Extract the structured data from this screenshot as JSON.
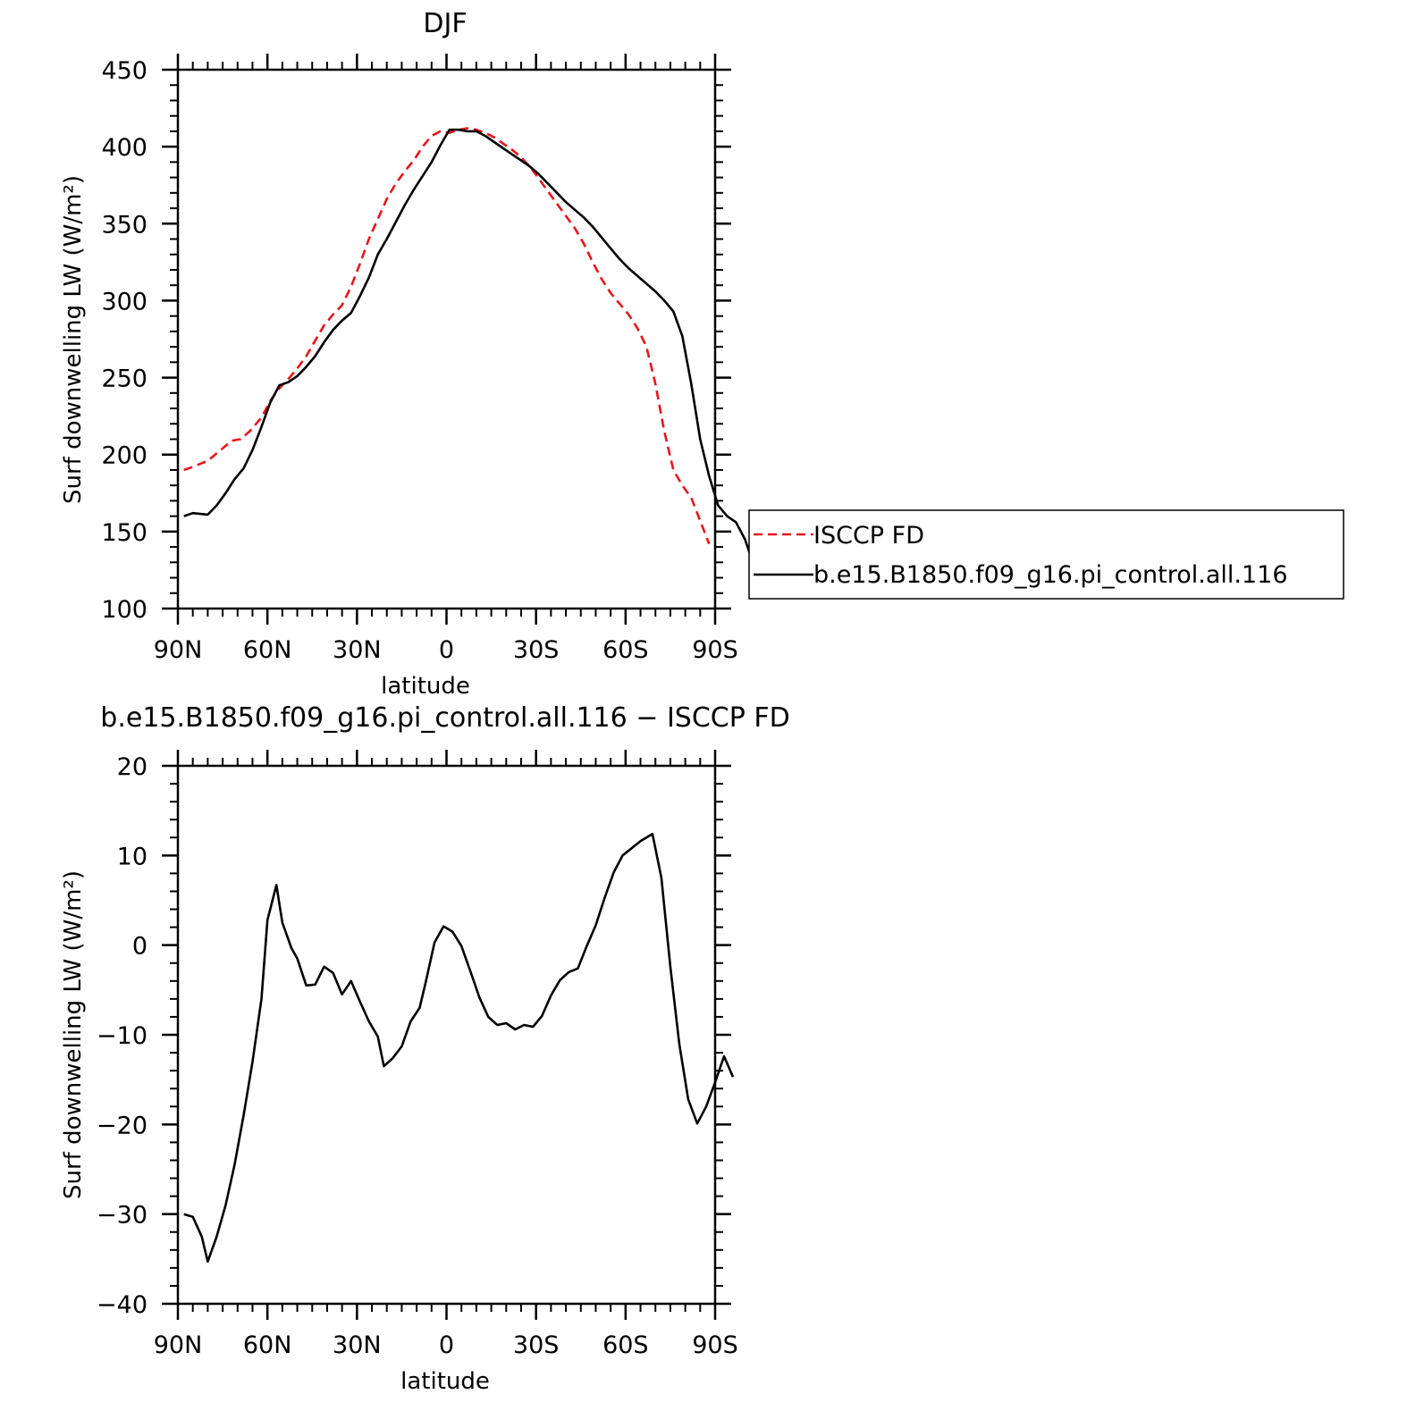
{
  "chart_data": [
    {
      "type": "line",
      "title": "DJF",
      "xlabel": "latitude",
      "ylabel": "Surf downwelling LW (W/m²)",
      "xlim": [
        90,
        -90
      ],
      "ylim": [
        100,
        450
      ],
      "x_ticks": [
        {
          "value": 90,
          "label": "90N"
        },
        {
          "value": 60,
          "label": "60N"
        },
        {
          "value": 30,
          "label": "30N"
        },
        {
          "value": 0,
          "label": "0"
        },
        {
          "value": -30,
          "label": "30S"
        },
        {
          "value": -60,
          "label": "60S"
        },
        {
          "value": -90,
          "label": "90S"
        }
      ],
      "y_ticks": [
        {
          "value": 100,
          "label": "100"
        },
        {
          "value": 150,
          "label": "150"
        },
        {
          "value": 200,
          "label": "200"
        },
        {
          "value": 250,
          "label": "250"
        },
        {
          "value": 300,
          "label": "300"
        },
        {
          "value": 350,
          "label": "350"
        },
        {
          "value": 400,
          "label": "400"
        },
        {
          "value": 450,
          "label": "450"
        }
      ],
      "legend": "right",
      "series": [
        {
          "name": "ISCCP FD",
          "color": "#e8151b",
          "dash": true,
          "points": [
            [
              88,
              190
            ],
            [
              85,
              192
            ],
            [
              80,
              196
            ],
            [
              75,
              204
            ],
            [
              72,
              209
            ],
            [
              69,
              210
            ],
            [
              66,
              215
            ],
            [
              62,
              224
            ],
            [
              59,
              235
            ],
            [
              56,
              243
            ],
            [
              53,
              249
            ],
            [
              50,
              256
            ],
            [
              47,
              264
            ],
            [
              44,
              274
            ],
            [
              41,
              284
            ],
            [
              38,
              291
            ],
            [
              35,
              297
            ],
            [
              32,
              309
            ],
            [
              29,
              324
            ],
            [
              26,
              340
            ],
            [
              23,
              353
            ],
            [
              20,
              366
            ],
            [
              17,
              376
            ],
            [
              14,
              384
            ],
            [
              11,
              391
            ],
            [
              8,
              400
            ],
            [
              5,
              407
            ],
            [
              2,
              410
            ],
            [
              -1,
              409
            ],
            [
              -4,
              411
            ],
            [
              -7,
              412
            ],
            [
              -10,
              411
            ],
            [
              -13,
              409
            ],
            [
              -16,
              406
            ],
            [
              -19,
              402
            ],
            [
              -22,
              398
            ],
            [
              -25,
              393
            ],
            [
              -28,
              387
            ],
            [
              -31,
              379
            ],
            [
              -34,
              371
            ],
            [
              -37,
              363
            ],
            [
              -40,
              355
            ],
            [
              -43,
              347
            ],
            [
              -46,
              337
            ],
            [
              -49,
              325
            ],
            [
              -52,
              314
            ],
            [
              -55,
              305
            ],
            [
              -58,
              298
            ],
            [
              -61,
              291
            ],
            [
              -64,
              282
            ],
            [
              -67,
              270
            ],
            [
              -70,
              246
            ],
            [
              -73,
              215
            ],
            [
              -76,
              190
            ],
            [
              -79,
              180
            ],
            [
              -82,
              172
            ],
            [
              -85,
              157
            ],
            [
              -88,
              142
            ]
          ]
        },
        {
          "name": "b.e15.B1850.f09_g16.pi_control.all.116",
          "color": "#000000",
          "dash": false,
          "points": [
            [
              88,
              160
            ],
            [
              85,
              162
            ],
            [
              80,
              161
            ],
            [
              77,
              167
            ],
            [
              74,
              175
            ],
            [
              71,
              184
            ],
            [
              68,
              191
            ],
            [
              65,
              203
            ],
            [
              62,
              218
            ],
            [
              59,
              234
            ],
            [
              56,
              245
            ],
            [
              53,
              247
            ],
            [
              50,
              251
            ],
            [
              47,
              257
            ],
            [
              44,
              264
            ],
            [
              41,
              273
            ],
            [
              38,
              281
            ],
            [
              35,
              287
            ],
            [
              32,
              292
            ],
            [
              29,
              303
            ],
            [
              26,
              315
            ],
            [
              23,
              330
            ],
            [
              20,
              340
            ],
            [
              17,
              351
            ],
            [
              14,
              362
            ],
            [
              11,
              372
            ],
            [
              8,
              381
            ],
            [
              5,
              390
            ],
            [
              2,
              401
            ],
            [
              -1,
              411
            ],
            [
              -4,
              411
            ],
            [
              -7,
              410
            ],
            [
              -10,
              410
            ],
            [
              -13,
              407
            ],
            [
              -16,
              403
            ],
            [
              -19,
              399
            ],
            [
              -22,
              395
            ],
            [
              -25,
              391
            ],
            [
              -28,
              387
            ],
            [
              -31,
              382
            ],
            [
              -34,
              376
            ],
            [
              -37,
              370
            ],
            [
              -40,
              364
            ],
            [
              -43,
              359
            ],
            [
              -46,
              354
            ],
            [
              -49,
              348
            ],
            [
              -52,
              341
            ],
            [
              -55,
              334
            ],
            [
              -58,
              327
            ],
            [
              -61,
              321
            ],
            [
              -64,
              316
            ],
            [
              -67,
              311
            ],
            [
              -70,
              306
            ],
            [
              -73,
              300
            ],
            [
              -76,
              293
            ],
            [
              -79,
              277
            ],
            [
              -82,
              246
            ],
            [
              -85,
              210
            ],
            [
              -88,
              186
            ],
            [
              -91,
              167
            ],
            [
              -94,
              160
            ],
            [
              -97,
              156
            ],
            [
              -100,
              145
            ],
            [
              -103,
              128
            ]
          ]
        }
      ]
    },
    {
      "type": "line",
      "title": "b.e15.B1850.f09_g16.pi_control.all.116 − ISCCP FD",
      "xlabel": "latitude",
      "ylabel": "Surf downwelling LW (W/m²)",
      "xlim": [
        90,
        -90
      ],
      "ylim": [
        -40,
        20
      ],
      "x_ticks": [
        {
          "value": 90,
          "label": "90N"
        },
        {
          "value": 60,
          "label": "60N"
        },
        {
          "value": 30,
          "label": "30N"
        },
        {
          "value": 0,
          "label": "0"
        },
        {
          "value": -30,
          "label": "30S"
        },
        {
          "value": -60,
          "label": "60S"
        },
        {
          "value": -90,
          "label": "90S"
        }
      ],
      "y_ticks": [
        {
          "value": -40,
          "label": "−40"
        },
        {
          "value": -30,
          "label": "−30"
        },
        {
          "value": -20,
          "label": "−20"
        },
        {
          "value": -10,
          "label": "−10"
        },
        {
          "value": 0,
          "label": "0"
        },
        {
          "value": 10,
          "label": "10"
        },
        {
          "value": 20,
          "label": "20"
        }
      ],
      "series": [
        {
          "color": "#000000",
          "dash": false,
          "points": [
            [
              88,
              -30
            ],
            [
              85,
              -30.3
            ],
            [
              82,
              -32.5
            ],
            [
              80,
              -35.3
            ],
            [
              77,
              -32.5
            ],
            [
              74,
              -29
            ],
            [
              71,
              -24.5
            ],
            [
              68,
              -19
            ],
            [
              65,
              -13
            ],
            [
              62,
              -6
            ],
            [
              60,
              2.8
            ],
            [
              57,
              6.7
            ],
            [
              55,
              2.5
            ],
            [
              52,
              -0.3
            ],
            [
              50,
              -1.5
            ],
            [
              47,
              -4.5
            ],
            [
              44,
              -4.4
            ],
            [
              41,
              -2.4
            ],
            [
              38,
              -3.1
            ],
            [
              35,
              -5.5
            ],
            [
              32,
              -4
            ],
            [
              29,
              -6.3
            ],
            [
              26,
              -8.5
            ],
            [
              23,
              -10.2
            ],
            [
              21,
              -13.5
            ],
            [
              18,
              -12.6
            ],
            [
              15,
              -11.3
            ],
            [
              12,
              -8.5
            ],
            [
              9,
              -7
            ],
            [
              7,
              -4.2
            ],
            [
              4,
              0.3
            ],
            [
              1,
              2.1
            ],
            [
              -2,
              1.5
            ],
            [
              -5,
              -0.1
            ],
            [
              -8,
              -2.9
            ],
            [
              -11,
              -5.8
            ],
            [
              -14,
              -8
            ],
            [
              -17,
              -8.9
            ],
            [
              -20,
              -8.7
            ],
            [
              -23,
              -9.4
            ],
            [
              -26,
              -8.9
            ],
            [
              -29,
              -9.1
            ],
            [
              -32,
              -7.9
            ],
            [
              -35,
              -5.6
            ],
            [
              -38,
              -3.9
            ],
            [
              -41,
              -3
            ],
            [
              -44,
              -2.6
            ],
            [
              -47,
              -0.1
            ],
            [
              -50,
              2.2
            ],
            [
              -53,
              5.3
            ],
            [
              -56,
              8.1
            ],
            [
              -59,
              10
            ],
            [
              -62,
              10.8
            ],
            [
              -65,
              11.6
            ],
            [
              -69,
              12.4
            ],
            [
              -72,
              7.5
            ],
            [
              -75,
              -2.4
            ],
            [
              -78,
              -11
            ],
            [
              -81,
              -17.2
            ],
            [
              -84,
              -19.9
            ],
            [
              -87,
              -18
            ],
            [
              -90,
              -15.3
            ],
            [
              -93,
              -12.4
            ],
            [
              -96,
              -14.7
            ]
          ]
        }
      ]
    }
  ]
}
